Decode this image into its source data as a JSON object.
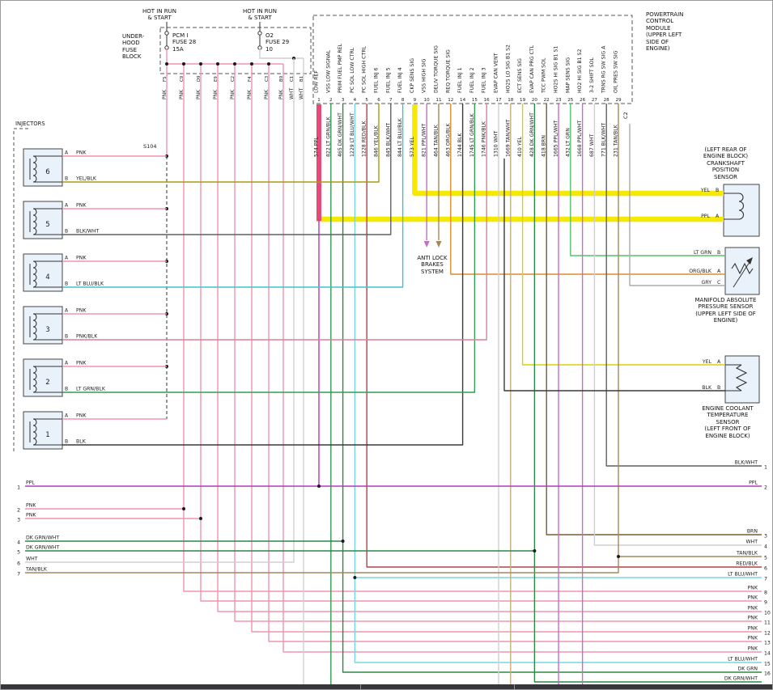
{
  "colors": {
    "PNK": "#ef95ac",
    "PNK/BLK": "#de7f97",
    "PPL": "#b03cb8",
    "PPL/WHT": "#c46ec8",
    "YEL": "#ddcf00",
    "YEL/BLK": "#a89a10",
    "BLK": "#3a3a3a",
    "BLK/WHT": "#5c6064",
    "LT BLU/BLK": "#3ec3cb",
    "LT BLU/WHT": "#77d7dd",
    "LT GRN": "#52c46a",
    "LT GRN/BLK": "#2f9e53",
    "DK GRN": "#1d7c35",
    "DK GRN/WHT": "#2e8746",
    "TAN/BLK": "#a3885c",
    "TAN/WHT": "#c6ad82",
    "BRN": "#7e5d2e",
    "RED/BLK": "#ad4343",
    "ORG/BLK": "#de8a2e",
    "WHT": "#cfcfcf",
    "GRY": "#ababab",
    "highlight_yellow": "#f6e800",
    "highlight_pink": "#e84a78",
    "symbol": "#333333",
    "box_fill": "#e9f2fa"
  },
  "header": {
    "hot_labels": [
      [
        "HOT IN RUN",
        "& START"
      ],
      [
        "HOT IN RUN",
        "& START"
      ]
    ],
    "underhood_label": [
      "UNDER-",
      "HOOD",
      "FUSE",
      "BLOCK"
    ],
    "fuses": [
      {
        "name": "PCM I",
        "id": "FUSE 28",
        "rating": "15A"
      },
      {
        "name": "O2",
        "id": "FUSE 29",
        "rating": "10"
      }
    ],
    "feed_drops": [
      {
        "pin": "F5",
        "color": "PNK"
      },
      {
        "pin": "C9",
        "color": "PNK"
      },
      {
        "pin": "D9",
        "color": "PNK"
      },
      {
        "pin": "E9",
        "color": "PNK"
      },
      {
        "pin": "C2",
        "color": "PNK"
      },
      {
        "pin": "F4",
        "color": "PNK"
      },
      {
        "pin": "C3",
        "color": "PNK"
      },
      {
        "pin": "B9",
        "color": "PNK"
      },
      {
        "pin": "C1",
        "color": "WHT"
      },
      {
        "pin": "B1",
        "color": "WHT"
      }
    ],
    "splice": "S104"
  },
  "pcm": {
    "label": [
      "POWERTRAIN",
      "CONTROL",
      "MODULE",
      "(UPPER LEFT",
      "SIDE OF",
      "ENGINE)"
    ],
    "connector": "C2",
    "pins": [
      {
        "pin": "1",
        "function": "LOW REF",
        "circuit": "574",
        "color": "PPL"
      },
      {
        "pin": "2",
        "function": "VSS LOW SIGNAL",
        "circuit": "822",
        "color": "LT GRN/BLK"
      },
      {
        "pin": "3",
        "function": "PRIM FUEL PMP REL",
        "circuit": "465",
        "color": "DK GRN/WHT"
      },
      {
        "pin": "4",
        "function": "PC SOL LOW CTRL",
        "circuit": "1229",
        "color": "LT BLU/WHT"
      },
      {
        "pin": "5",
        "function": "PC SOL HIGH CTRL",
        "circuit": "1228",
        "color": "RED/BLK"
      },
      {
        "pin": "6",
        "function": "FUEL INJ 6",
        "circuit": "846",
        "color": "YEL/BLK"
      },
      {
        "pin": "7",
        "function": "FUEL INJ 5",
        "circuit": "845",
        "color": "BLK/WHT"
      },
      {
        "pin": "8",
        "function": "FUEL INJ 4",
        "circuit": "844",
        "color": "LT BLU/BLK"
      },
      {
        "pin": "9",
        "function": "CKP SENS SIG",
        "circuit": "573",
        "color": "YEL"
      },
      {
        "pin": "10",
        "function": "VSS HIGH SIG",
        "circuit": "821",
        "color": "PPL/WHT"
      },
      {
        "pin": "11",
        "function": "DELIV TORQUE SIG",
        "circuit": "464",
        "color": "TAN/BLK"
      },
      {
        "pin": "12",
        "function": "REQ TORQUE SIG",
        "circuit": "463",
        "color": "ORG/BLK"
      },
      {
        "pin": "14",
        "function": "FUEL INJ 1",
        "circuit": "1744",
        "color": "BLK"
      },
      {
        "pin": "15",
        "function": "FUEL INJ 2",
        "circuit": "1745",
        "color": "LT GRN/BLK"
      },
      {
        "pin": "16",
        "function": "FUEL INJ 3",
        "circuit": "1746",
        "color": "PNK/BLK"
      },
      {
        "pin": "17",
        "function": "EVAP CAN VENT",
        "circuit": "1310",
        "color": "WHT"
      },
      {
        "pin": "18",
        "function": "HO2S LO SIG B1 S2",
        "circuit": "1669",
        "color": "TAN/WHT"
      },
      {
        "pin": "19",
        "function": "ECT SENS SIG",
        "circuit": "410",
        "color": "YEL"
      },
      {
        "pin": "20",
        "function": "EVAP CAN PRG CTL",
        "circuit": "428",
        "color": "DK GRN/WHT"
      },
      {
        "pin": "22",
        "function": "TCC PWM SOL",
        "circuit": "418",
        "color": "BRN"
      },
      {
        "pin": "23",
        "function": "HO2S HI SIG B1 S1",
        "circuit": "1665",
        "color": "PPL/WHT"
      },
      {
        "pin": "25",
        "function": "MAP SENS SIG",
        "circuit": "432",
        "color": "LT GRN"
      },
      {
        "pin": "26",
        "function": "HO2 HI SIG B1 S2",
        "circuit": "1668",
        "color": "PPL/WHT"
      },
      {
        "pin": "27",
        "function": "3-2 SHIFT SOL",
        "circuit": "687",
        "color": "WHT"
      },
      {
        "pin": "28",
        "function": "TRNS RG SW SIG A",
        "circuit": "771",
        "color": "BLK/WHT"
      },
      {
        "pin": "29",
        "function": "OIL PRES SW SIG",
        "circuit": "231",
        "color": "TAN/BLK"
      }
    ]
  },
  "injectors": {
    "group_label": "INJECTORS",
    "items": [
      {
        "num": "6",
        "pin_a": "A",
        "wire_a": "PNK",
        "pin_b": "B",
        "wire_b": "YEL/BLK"
      },
      {
        "num": "5",
        "pin_a": "A",
        "wire_a": "PNK",
        "pin_b": "B",
        "wire_b": "BLK/WHT"
      },
      {
        "num": "4",
        "pin_a": "A",
        "wire_a": "PNK",
        "pin_b": "B",
        "wire_b": "LT BLU/BLK"
      },
      {
        "num": "3",
        "pin_a": "A",
        "wire_a": "PNK",
        "pin_b": "B",
        "wire_b": "PNK/BLK"
      },
      {
        "num": "2",
        "pin_a": "A",
        "wire_a": "PNK",
        "pin_b": "B",
        "wire_b": "LT GRN/BLK"
      },
      {
        "num": "1",
        "pin_a": "A",
        "wire_a": "PNK",
        "pin_b": "B",
        "wire_b": "BLK"
      }
    ]
  },
  "abs_label": [
    "ANTI LOCK",
    "BRAKES",
    "SYSTEM"
  ],
  "sensors": {
    "ckp": {
      "label": [
        "(LEFT REAR OF",
        "ENGINE BLOCK)",
        "CRANKSHAFT",
        "POSITION",
        "SENSOR"
      ],
      "pins": [
        {
          "wire": "YEL",
          "pin": "B"
        },
        {
          "wire": "PPL",
          "pin": "A"
        }
      ]
    },
    "map": {
      "label": [
        "MANIFOLD ABSOLUTE",
        "PRESSURE SENSOR",
        "(UPPER LEFT SIDE OF",
        "ENGINE)"
      ],
      "pins": [
        {
          "wire": "LT GRN",
          "pin": "B"
        },
        {
          "wire": "ORG/BLK",
          "pin": "A"
        },
        {
          "wire": "GRY",
          "pin": "C"
        }
      ]
    },
    "ect": {
      "label": [
        "ENGINE COOLANT",
        "TEMPERATURE",
        "SENSOR",
        "(LEFT FRONT OF",
        "ENGINE BLOCK)"
      ],
      "pins": [
        {
          "wire": "YEL",
          "pin": "A"
        },
        {
          "wire": "BLK",
          "pin": "B"
        }
      ]
    }
  },
  "left_stubs": [
    {
      "num": "1",
      "label": "PPL"
    },
    {
      "num": "2",
      "label": "PNK"
    },
    {
      "num": "3",
      "label": "PNK"
    },
    {
      "num": "4",
      "label": "DK GRN/WHT"
    },
    {
      "num": "5",
      "label": "DK GRN/WHT"
    },
    {
      "num": "6",
      "label": "WHT"
    },
    {
      "num": "7",
      "label": "TAN/BLK"
    }
  ],
  "right_stubs": [
    {
      "num": "1",
      "label": "BLK/WHT"
    },
    {
      "num": "2",
      "label": "PPL"
    },
    {
      "num": "3",
      "label": "BRN"
    },
    {
      "num": "4",
      "label": "WHT"
    },
    {
      "num": "5",
      "label": "TAN/BLK"
    },
    {
      "num": "6",
      "label": "RED/BLK"
    },
    {
      "num": "7",
      "label": "LT BLU/WHT"
    },
    {
      "num": "8",
      "label": "PNK"
    },
    {
      "num": "9",
      "label": "PNK"
    },
    {
      "num": "10",
      "label": "PNK"
    },
    {
      "num": "11",
      "label": "PNK"
    },
    {
      "num": "12",
      "label": "PNK"
    },
    {
      "num": "13",
      "label": "PNK"
    },
    {
      "num": "14",
      "label": "PNK"
    },
    {
      "num": "15",
      "label": "LT BLU/WHT"
    },
    {
      "num": "16",
      "label": "DK GRN"
    },
    {
      "num": "",
      "label": "DK GRN/WHT"
    }
  ]
}
